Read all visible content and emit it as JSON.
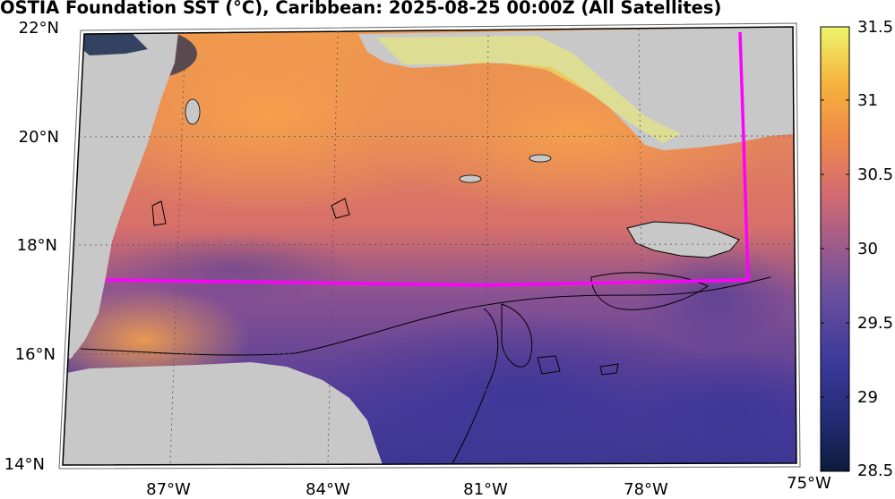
{
  "title": "OSTIA Foundation SST (°C), Caribbean: 2025-08-25 00:00Z (All Satellites)",
  "lat_labels": [
    "22°N",
    "20°N",
    "18°N",
    "16°N",
    "14°N"
  ],
  "lon_labels": [
    "87°W",
    "84°W",
    "81°W",
    "78°W",
    "75°W"
  ],
  "colorbar": {
    "ticks": [
      "31.5",
      "31",
      "30.5",
      "30",
      "29.5",
      "29",
      "28.5"
    ],
    "min": 28.5,
    "max": 31.5
  },
  "colors": {
    "land": "#c8c8c8",
    "boundary": "#ff00ff",
    "warm": "#f0a048",
    "cool": "#5a4a9a"
  }
}
